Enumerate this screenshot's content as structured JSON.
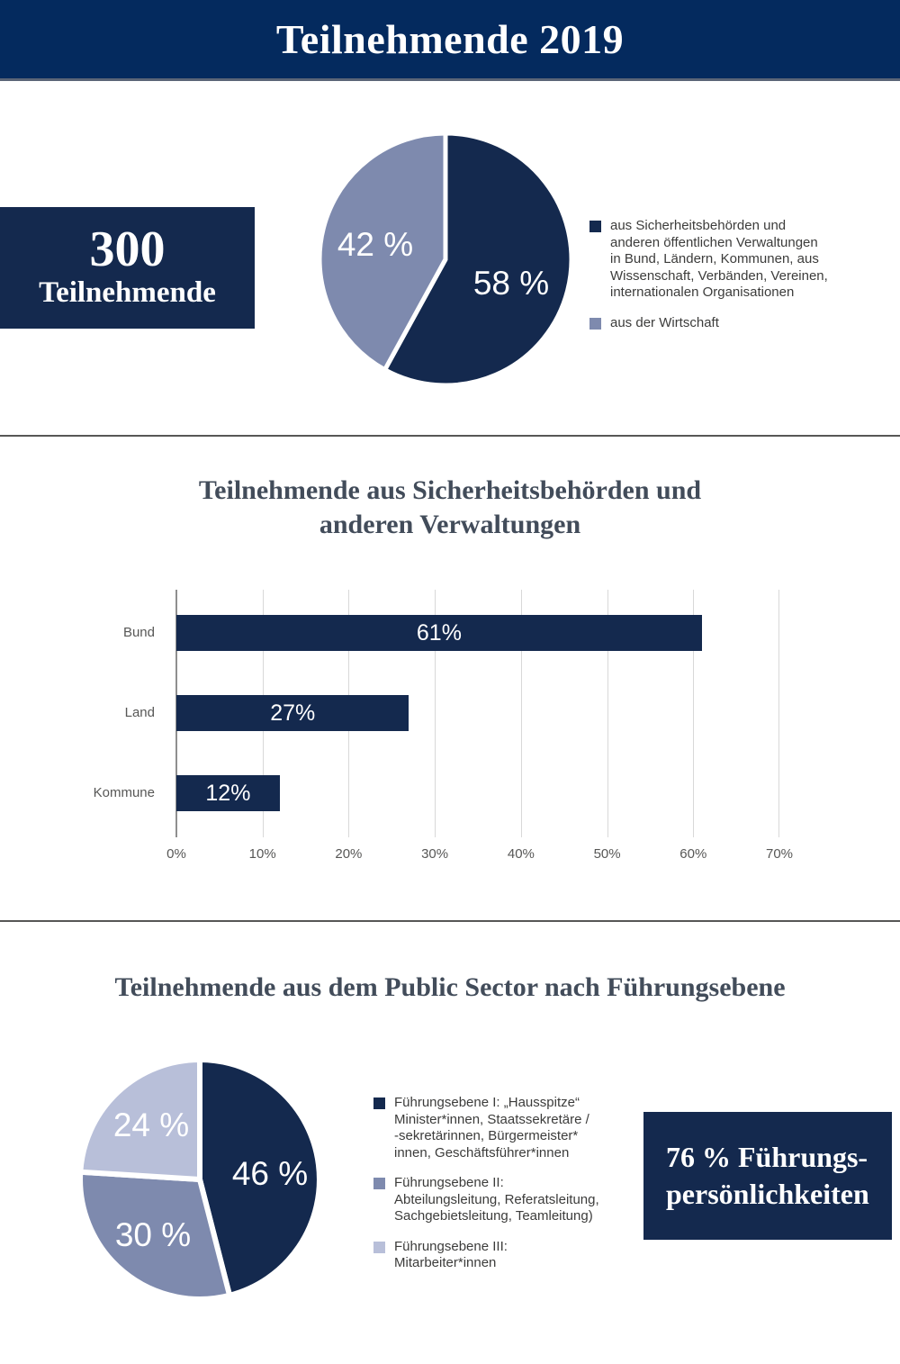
{
  "header": {
    "title": "Teilnehmende 2019"
  },
  "stat_box": {
    "value": "300",
    "label": "Teilnehmende"
  },
  "sections": {
    "bar": {
      "title_lines": [
        "Teilnehmende aus Sicherheitsbehörden und",
        "anderen Verwaltungen"
      ]
    },
    "pie2": {
      "title": "Teilnehmende aus dem Public Sector nach Führungsebene"
    }
  },
  "legend1": {
    "items": [
      {
        "swatch": "navy",
        "lines": [
          "aus Sicherheitsbehörden und",
          "anderen öffentlichen Verwaltungen",
          "in Bund, Ländern, Kommunen, aus",
          "Wissenschaft, Verbänden, Vereinen,",
          "internationalen Organisationen"
        ]
      },
      {
        "swatch": "medium",
        "lines": [
          "aus der Wirtschaft"
        ]
      }
    ]
  },
  "legend2": {
    "items": [
      {
        "swatch": "navy",
        "lines": [
          "Führungsebene I: „Hausspitze“",
          "Minister*innen, Staatssekretäre /",
          "-sekretärinnen, Bürgermeister*",
          "innen, Geschäftsführer*innen"
        ]
      },
      {
        "swatch": "medium",
        "lines": [
          "Führungsebene II:",
          "Abteilungsleitung, Referatsleitung,",
          "Sachgebietsleitung, Teamleitung)"
        ]
      },
      {
        "swatch": "light",
        "lines": [
          "Führungsebene III:",
          "Mitarbeiter*innen"
        ]
      }
    ]
  },
  "highlight_box": {
    "lines": [
      "76 % Führungs-",
      "persönlichkeiten"
    ]
  },
  "colors": {
    "banner_navy": "#042a5e",
    "dark_navy": "#14294e",
    "medium_blue": "#7e8aae",
    "light_blue": "#b8bfd9",
    "divider_grey": "#575756",
    "axis_text_grey": "#575756",
    "legend_text_grey": "#3c3c3b",
    "title_slate": "#424c5a",
    "gridline_grey": "#d8d8d8"
  },
  "chart_data": [
    {
      "type": "pie",
      "title": "300 Teilnehmende",
      "legend_position": "right",
      "slices": [
        {
          "value": 58,
          "display": "58 %",
          "color": "#14294e",
          "label": "aus Sicherheitsbehörden und anderen öffentlichen Verwaltungen in Bund, Ländern, Kommunen, aus Wissenschaft, Verbänden, Vereinen, internationalen Organisationen"
        },
        {
          "value": 42,
          "display": "42 %",
          "color": "#7e8aae",
          "label": "aus der Wirtschaft"
        }
      ]
    },
    {
      "type": "bar",
      "orientation": "horizontal",
      "title": "Teilnehmende aus Sicherheitsbehörden und anderen Verwaltungen",
      "categories": [
        "Bund",
        "Land",
        "Kommune"
      ],
      "values": [
        61,
        27,
        12
      ],
      "value_labels": [
        "61%",
        "27%",
        "12%"
      ],
      "x_ticks": [
        "0%",
        "10%",
        "20%",
        "30%",
        "40%",
        "50%",
        "60%",
        "70%"
      ],
      "xlim": [
        0,
        70
      ],
      "bar_color": "#14294e",
      "grid": true
    },
    {
      "type": "pie",
      "title": "Teilnehmende aus dem Public Sector nach Führungsebene",
      "annotation": "76 % Führungspersönlichkeiten",
      "slices": [
        {
          "value": 46,
          "display": "46 %",
          "color": "#14294e",
          "label": "Führungsebene I: „Hausspitze“ Minister*innen, Staatssekretäre / -sekretärinnen, Bürgermeister*innen, Geschäftsführer*innen"
        },
        {
          "value": 30,
          "display": "30 %",
          "color": "#7e8aae",
          "label": "Führungsebene II: Abteilungsleitung, Referatsleitung, Sachgebietsleitung, Teamleitung)"
        },
        {
          "value": 24,
          "display": "24 %",
          "color": "#b8bfd9",
          "label": "Führungsebene III: Mitarbeiter*innen"
        }
      ]
    }
  ]
}
